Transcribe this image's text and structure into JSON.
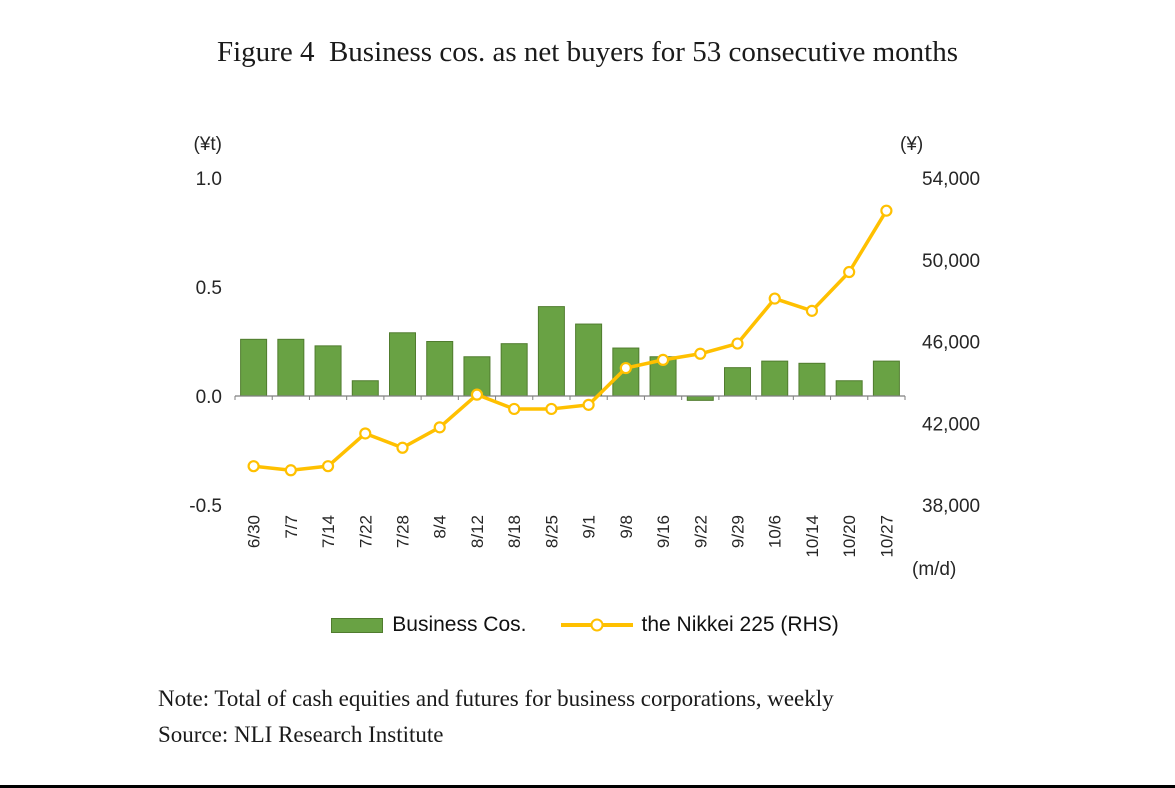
{
  "figure": {
    "title": "Figure 4  Business cos. as net buyers for 53 consecutive months",
    "note": "Note: Total of cash equities and futures for business corporations, weekly",
    "source": "Source: NLI Research Institute"
  },
  "chart_data": {
    "type": "bar+line",
    "categories": [
      "6/30",
      "7/7",
      "7/14",
      "7/22",
      "7/28",
      "8/4",
      "8/12",
      "8/18",
      "8/25",
      "9/1",
      "9/8",
      "9/16",
      "9/22",
      "9/29",
      "10/6",
      "10/14",
      "10/20",
      "10/27"
    ],
    "series": [
      {
        "name": "Business Cos.",
        "type": "bar",
        "axis": "left",
        "color": "#69a244",
        "border": "#507c2e",
        "values": [
          0.26,
          0.26,
          0.23,
          0.07,
          0.29,
          0.25,
          0.18,
          0.24,
          0.41,
          0.33,
          0.22,
          0.18,
          -0.02,
          0.13,
          0.16,
          0.15,
          0.07,
          0.16
        ]
      },
      {
        "name": "the Nikkei 225 (RHS)",
        "type": "line",
        "axis": "right",
        "color": "#ffc000",
        "values": [
          39900,
          39700,
          39900,
          41500,
          40800,
          41800,
          43400,
          42700,
          42700,
          42900,
          44700,
          45100,
          45400,
          45900,
          48100,
          47500,
          49400,
          52400
        ]
      }
    ],
    "left_axis": {
      "unit": "(¥t)",
      "min": -0.5,
      "max": 1.0,
      "ticks": [
        {
          "v": 1.0,
          "label": "1.0"
        },
        {
          "v": 0.5,
          "label": "0.5"
        },
        {
          "v": 0.0,
          "label": "0.0"
        },
        {
          "v": -0.5,
          "label": "-0.5"
        }
      ]
    },
    "right_axis": {
      "unit": "(¥)",
      "min": 38000,
      "max": 54000,
      "ticks": [
        {
          "v": 54000,
          "label": "54,000"
        },
        {
          "v": 50000,
          "label": "50,000"
        },
        {
          "v": 46000,
          "label": "46,000"
        },
        {
          "v": 42000,
          "label": "42,000"
        },
        {
          "v": 38000,
          "label": "38,000"
        }
      ]
    },
    "x_axis": {
      "unit": "(m/d)"
    },
    "legend_position": "bottom",
    "grid": false
  }
}
